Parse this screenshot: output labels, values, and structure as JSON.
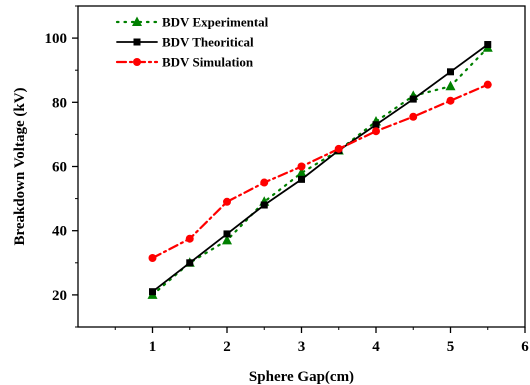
{
  "chart_data": {
    "type": "line",
    "xlabel": "Sphere Gap(cm)",
    "ylabel": "Breakdown Voltage (kV)",
    "xlim": [
      0,
      6
    ],
    "ylim": [
      10,
      110
    ],
    "x_ticks": [
      1,
      2,
      3,
      4,
      5,
      6
    ],
    "y_ticks": [
      20,
      40,
      60,
      80,
      100
    ],
    "x_tick_labels": [
      "1",
      "2",
      "3",
      "4",
      "5",
      "6"
    ],
    "y_tick_labels": [
      "20",
      "40",
      "60",
      "80",
      "100"
    ],
    "legend_position": "top-left",
    "series": [
      {
        "name": "BDV Experimental",
        "color": "#008000",
        "line_style": "dotted",
        "marker": "triangle",
        "x": [
          1,
          1.5,
          2,
          2.5,
          3,
          3.5,
          4,
          4.5,
          5,
          5.5
        ],
        "y": [
          20,
          30,
          37,
          49,
          58,
          65,
          74,
          82,
          85,
          97
        ]
      },
      {
        "name": "BDV Theoritical",
        "color": "#000000",
        "line_style": "solid",
        "marker": "square",
        "x": [
          1,
          1.5,
          2,
          2.5,
          3,
          3.5,
          4,
          4.5,
          5,
          5.5
        ],
        "y": [
          21,
          30,
          39,
          48,
          56,
          65,
          73,
          81,
          89.5,
          98
        ]
      },
      {
        "name": "BDV Simulation",
        "color": "#ff0000",
        "line_style": "dash-dot",
        "marker": "circle",
        "x": [
          1,
          1.5,
          2,
          2.5,
          3,
          3.5,
          4,
          4.5,
          5,
          5.5
        ],
        "y": [
          31.5,
          37.5,
          49,
          55,
          60,
          65.5,
          71,
          75.5,
          80.5,
          85.5
        ]
      }
    ]
  }
}
